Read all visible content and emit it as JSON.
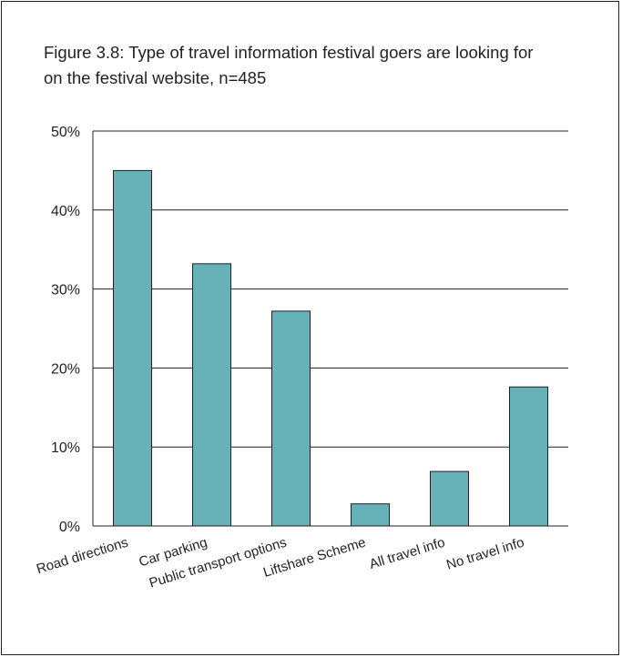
{
  "figure": {
    "title": "Figure 3.8: Type of travel information festival goers are looking for on the festival website, n=485"
  },
  "colors": {
    "bar_fill": "#66b2b8",
    "bar_stroke": "#231f20",
    "grid": "#231f20",
    "text": "#231f20"
  },
  "chart_data": {
    "type": "bar",
    "categories": [
      "Road directions",
      "Car parking",
      "Public transport options",
      "Liftshare Scheme",
      "All travel info",
      "No travel info"
    ],
    "values": [
      45,
      33.2,
      27.2,
      2.8,
      6.9,
      17.6
    ],
    "ylim": [
      0,
      50
    ],
    "yticks": [
      0,
      10,
      20,
      30,
      40,
      50
    ],
    "ytick_labels": [
      "0%",
      "10%",
      "20%",
      "30%",
      "40%",
      "50%"
    ],
    "grid": true,
    "xlabel": "",
    "ylabel": ""
  }
}
